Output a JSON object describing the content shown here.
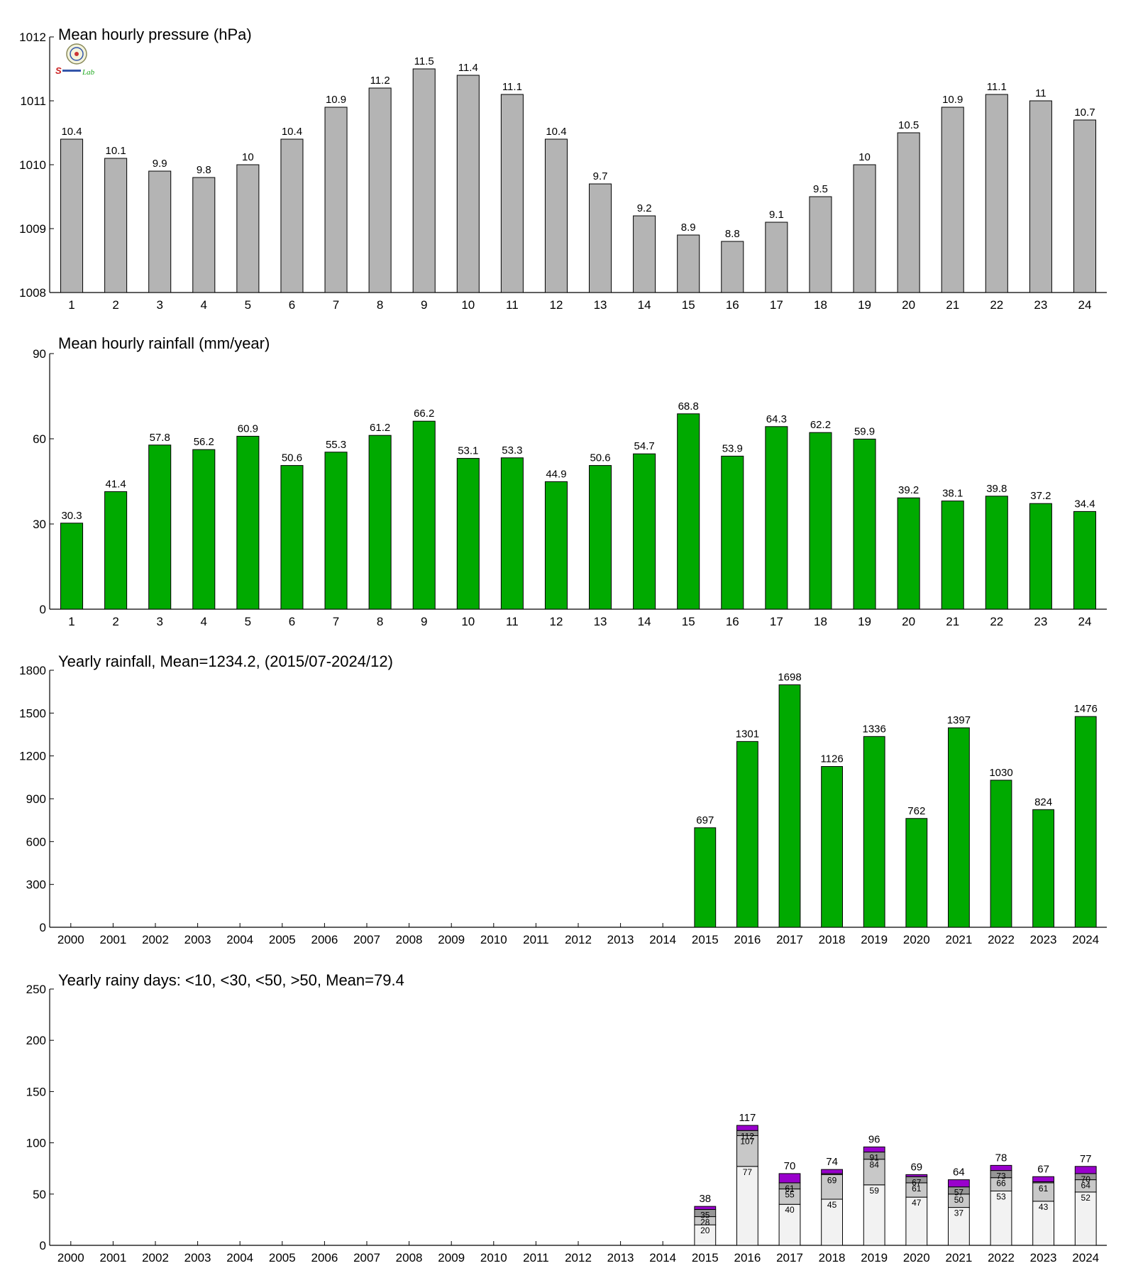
{
  "colors": {
    "grey_bar": "#b4b4b4",
    "green_bar": "#00aa00",
    "rainy_lt10": "#f2f2f2",
    "rainy_lt30": "#c8c8c8",
    "rainy_lt50": "#969696",
    "rainy_gt50": "#9900cc",
    "axis": "#000000"
  },
  "logo": {
    "text": "Lab"
  },
  "chart_data": [
    {
      "type": "bar",
      "title": "Mean hourly pressure (hPa)",
      "xlabel": "",
      "ylabel": "",
      "categories": [
        "1",
        "2",
        "3",
        "4",
        "5",
        "6",
        "7",
        "8",
        "9",
        "10",
        "11",
        "12",
        "13",
        "14",
        "15",
        "16",
        "17",
        "18",
        "19",
        "20",
        "21",
        "22",
        "23",
        "24"
      ],
      "values": [
        1010.4,
        1010.1,
        1009.9,
        1009.8,
        1010,
        1010.4,
        1010.9,
        1011.2,
        1011.5,
        1011.4,
        1011.1,
        1010.4,
        1009.7,
        1009.2,
        1008.9,
        1008.8,
        1009.1,
        1009.5,
        1010,
        1010.5,
        1010.9,
        1011.1,
        1011,
        1010.7
      ],
      "data_labels": [
        "10.4",
        "10.1",
        "9.9",
        "9.8",
        "10",
        "10.4",
        "10.9",
        "11.2",
        "11.5",
        "11.4",
        "11.1",
        "10.4",
        "9.7",
        "9.2",
        "8.9",
        "8.8",
        "9.1",
        "9.5",
        "10",
        "10.5",
        "10.9",
        "11.1",
        "11",
        "10.7"
      ],
      "ylim": [
        1008,
        1012
      ],
      "yticks": [
        1008,
        1009,
        1010,
        1011,
        1012
      ],
      "color": "#b4b4b4"
    },
    {
      "type": "bar",
      "title": "Mean hourly rainfall (mm/year)",
      "xlabel": "",
      "ylabel": "",
      "categories": [
        "1",
        "2",
        "3",
        "4",
        "5",
        "6",
        "7",
        "8",
        "9",
        "10",
        "11",
        "12",
        "13",
        "14",
        "15",
        "16",
        "17",
        "18",
        "19",
        "20",
        "21",
        "22",
        "23",
        "24"
      ],
      "values": [
        30.3,
        41.4,
        57.8,
        56.2,
        60.9,
        50.6,
        55.3,
        61.2,
        66.2,
        53.1,
        53.3,
        44.9,
        50.6,
        54.7,
        68.8,
        53.9,
        64.3,
        62.2,
        59.9,
        39.2,
        38.1,
        39.8,
        37.2,
        34.4
      ],
      "data_labels": [
        "30.3",
        "41.4",
        "57.8",
        "56.2",
        "60.9",
        "50.6",
        "55.3",
        "61.2",
        "66.2",
        "53.1",
        "53.3",
        "44.9",
        "50.6",
        "54.7",
        "68.8",
        "53.9",
        "64.3",
        "62.2",
        "59.9",
        "39.2",
        "38.1",
        "39.8",
        "37.2",
        "34.4"
      ],
      "ylim": [
        0,
        90
      ],
      "yticks": [
        0,
        30,
        60,
        90
      ],
      "color": "#00aa00"
    },
    {
      "type": "bar",
      "title": "Yearly rainfall, Mean=1234.2, (2015/07-2024/12)",
      "xlabel": "",
      "ylabel": "",
      "categories": [
        "2000",
        "2001",
        "2002",
        "2003",
        "2004",
        "2005",
        "2006",
        "2007",
        "2008",
        "2009",
        "2010",
        "2011",
        "2012",
        "2013",
        "2014",
        "2015",
        "2016",
        "2017",
        "2018",
        "2019",
        "2020",
        "2021",
        "2022",
        "2023",
        "2024"
      ],
      "values": [
        null,
        null,
        null,
        null,
        null,
        null,
        null,
        null,
        null,
        null,
        null,
        null,
        null,
        null,
        null,
        697,
        1301,
        1698,
        1126,
        1336,
        762,
        1397,
        1030,
        824,
        1476
      ],
      "data_labels": [
        "",
        "",
        "",
        "",
        "",
        "",
        "",
        "",
        "",
        "",
        "",
        "",
        "",
        "",
        "",
        "697",
        "1301",
        "1698",
        "1126",
        "1336",
        "762",
        "1397",
        "1030",
        "824",
        "1476"
      ],
      "ylim": [
        0,
        1800
      ],
      "yticks": [
        0,
        300,
        600,
        900,
        1200,
        1500,
        1800
      ],
      "color": "#00aa00"
    },
    {
      "type": "bar",
      "stacked": true,
      "title": "Yearly rainy days: <10, <30, <50, >50, Mean=79.4",
      "xlabel": "",
      "ylabel": "",
      "categories": [
        "2000",
        "2001",
        "2002",
        "2003",
        "2004",
        "2005",
        "2006",
        "2007",
        "2008",
        "2009",
        "2010",
        "2011",
        "2012",
        "2013",
        "2014",
        "2015",
        "2016",
        "2017",
        "2018",
        "2019",
        "2020",
        "2021",
        "2022",
        "2023",
        "2024"
      ],
      "ylim": [
        0,
        250
      ],
      "yticks": [
        0,
        50,
        100,
        150,
        200,
        250
      ],
      "cumulative": {
        "lt10": [
          null,
          null,
          null,
          null,
          null,
          null,
          null,
          null,
          null,
          null,
          null,
          null,
          null,
          null,
          null,
          20,
          77,
          40,
          45,
          59,
          47,
          37,
          53,
          43,
          52
        ],
        "lt30": [
          null,
          null,
          null,
          null,
          null,
          null,
          null,
          null,
          null,
          null,
          null,
          null,
          null,
          null,
          null,
          28,
          107,
          55,
          69,
          84,
          61,
          50,
          66,
          61,
          64
        ],
        "lt50": [
          null,
          null,
          null,
          null,
          null,
          null,
          null,
          null,
          null,
          null,
          null,
          null,
          null,
          null,
          null,
          35,
          112,
          61,
          70,
          91,
          67,
          57,
          73,
          62,
          70
        ],
        "total": [
          null,
          null,
          null,
          null,
          null,
          null,
          null,
          null,
          null,
          null,
          null,
          null,
          null,
          null,
          null,
          38,
          117,
          70,
          74,
          96,
          69,
          64,
          78,
          67,
          77
        ]
      },
      "segment_labels": {
        "lt10": [
          "",
          "",
          "",
          "",
          "",
          "",
          "",
          "",
          "",
          "",
          "",
          "",
          "",
          "",
          "",
          "20",
          "77",
          "40",
          "45",
          "59",
          "47",
          "37",
          "53",
          "43",
          "52"
        ],
        "lt30": [
          "",
          "",
          "",
          "",
          "",
          "",
          "",
          "",
          "",
          "",
          "",
          "",
          "",
          "",
          "",
          "28",
          "107",
          "55",
          "69",
          "84",
          "61",
          "50",
          "66",
          "61",
          "64"
        ],
        "lt50": [
          "",
          "",
          "",
          "",
          "",
          "",
          "",
          "",
          "",
          "",
          "",
          "",
          "",
          "",
          "",
          "35",
          "112",
          "61",
          "",
          "91",
          "67",
          "57",
          "73",
          "",
          "70"
        ],
        "total": [
          "",
          "",
          "",
          "",
          "",
          "",
          "",
          "",
          "",
          "",
          "",
          "",
          "",
          "",
          "",
          "38",
          "117",
          "70",
          "74",
          "96",
          "69",
          "64",
          "78",
          "67",
          "77"
        ]
      },
      "colors": [
        "#f2f2f2",
        "#c8c8c8",
        "#969696",
        "#9900cc"
      ]
    }
  ]
}
